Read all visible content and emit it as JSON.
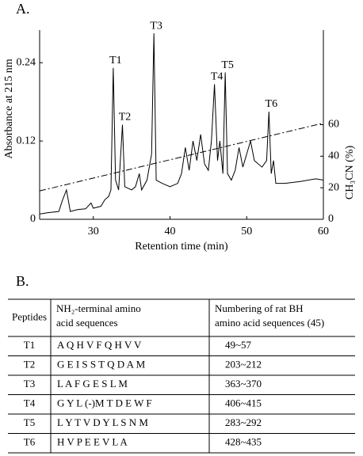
{
  "panel_labels": [
    "A.",
    "B."
  ],
  "chart_data": {
    "type": "line",
    "xlabel": "Retention time (min)",
    "ylabel": "Absorbance at 215 nm",
    "y2label": "CH₃CN (%)",
    "xlim": [
      23,
      60
    ],
    "xticks": [
      30,
      40,
      50,
      60
    ],
    "ylim": [
      0,
      0.29
    ],
    "yticks": [
      0,
      0.12,
      0.24
    ],
    "y2lim": [
      0,
      120
    ],
    "y2ticks": [
      0,
      20,
      40,
      60
    ],
    "series": [
      {
        "color": "#000000",
        "style": "solid",
        "x": [
          23,
          24,
          25.5,
          26,
          26.5,
          27,
          28,
          29,
          29.7,
          30,
          31,
          31.5,
          32,
          32.3,
          32.6,
          32.9,
          33.3,
          33.8,
          34.1,
          35,
          35.5,
          36,
          36.3,
          37,
          37.6,
          37.9,
          38.2,
          39,
          40,
          41,
          41.5,
          42,
          42.5,
          43,
          43.5,
          44,
          44.5,
          45,
          45.4,
          45.8,
          46.2,
          46.5,
          46.9,
          47.2,
          47.5,
          48,
          48.5,
          49,
          49.5,
          50,
          50.5,
          51,
          52,
          52.6,
          52.9,
          53.2,
          53.5,
          53.8,
          55,
          57,
          59,
          60
        ],
        "values": [
          0.008,
          0.01,
          0.012,
          0.03,
          0.045,
          0.012,
          0.015,
          0.016,
          0.025,
          0.017,
          0.02,
          0.03,
          0.035,
          0.045,
          0.232,
          0.06,
          0.045,
          0.145,
          0.05,
          0.045,
          0.05,
          0.07,
          0.045,
          0.06,
          0.1,
          0.285,
          0.06,
          0.055,
          0.05,
          0.055,
          0.07,
          0.11,
          0.075,
          0.12,
          0.09,
          0.13,
          0.085,
          0.075,
          0.12,
          0.207,
          0.09,
          0.12,
          0.07,
          0.225,
          0.07,
          0.06,
          0.075,
          0.11,
          0.08,
          0.1,
          0.12,
          0.09,
          0.08,
          0.09,
          0.165,
          0.07,
          0.09,
          0.055,
          0.055,
          0.058,
          0.062,
          0.06
        ]
      },
      {
        "color": "#000000",
        "style": "dashdot",
        "axis": "y2",
        "x": [
          23,
          60
        ],
        "values": [
          18,
          61
        ]
      }
    ],
    "annotations": [
      {
        "text": "T1",
        "x": 32.6
      },
      {
        "text": "T2",
        "x": 33.8
      },
      {
        "text": "T3",
        "x": 37.9
      },
      {
        "text": "T4",
        "x": 45.8
      },
      {
        "text": "T5",
        "x": 47.2
      },
      {
        "text": "T6",
        "x": 52.9
      }
    ]
  },
  "table": {
    "header": [
      [
        "Peptides"
      ],
      [
        "NH₂-terminal amino",
        "acid sequences"
      ],
      [
        "Numbering of rat BH",
        "amino acid sequences (45)"
      ]
    ],
    "rows": [
      [
        "T1",
        "A Q H V F Q H V V",
        "49~57"
      ],
      [
        "T2",
        "G E I S S T Q D A M",
        "203~212"
      ],
      [
        "T3",
        "L A F G E S L M",
        "363~370"
      ],
      [
        "T4",
        "G Y L (-)M T D E W F",
        "406~415"
      ],
      [
        "T5",
        "L Y T V D Y L S N M",
        "283~292"
      ],
      [
        "T6",
        "H V P E E V L A",
        "428~435"
      ]
    ]
  }
}
